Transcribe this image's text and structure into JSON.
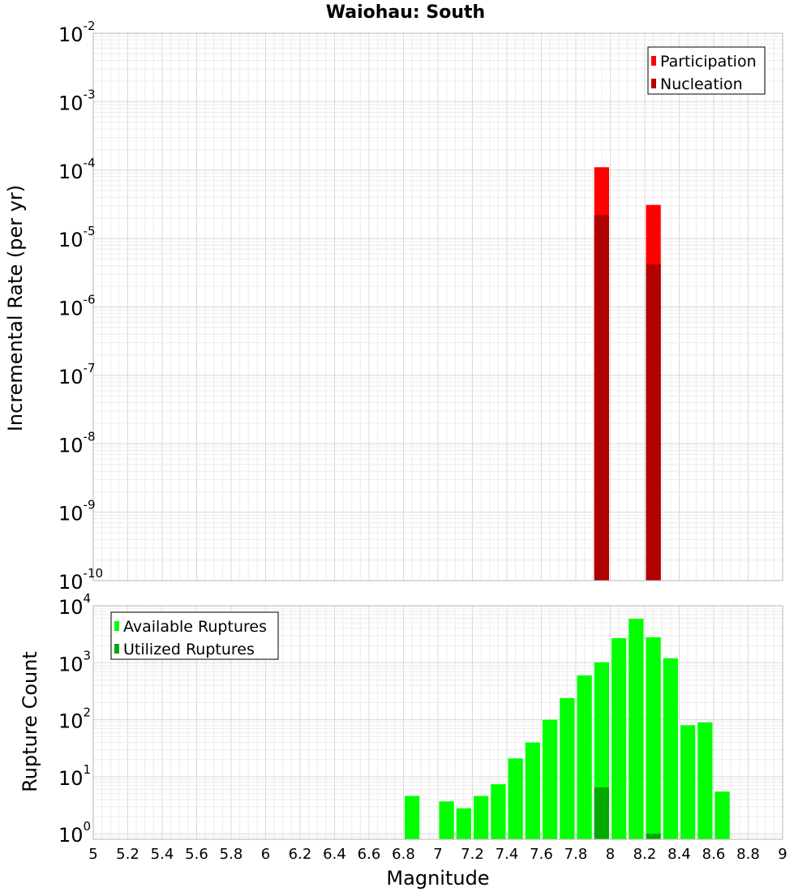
{
  "chart_data": [
    {
      "type": "bar",
      "title": "Waiohau: South",
      "xlabel": "",
      "ylabel": "Incremental Rate (per yr)",
      "xlim": [
        5,
        9
      ],
      "ylim": [
        1e-10,
        0.01
      ],
      "yscale": "log",
      "grid": true,
      "legend_position": "top-right",
      "bin_width": 0.1,
      "series": [
        {
          "name": "Participation",
          "color": "#ff0000",
          "x": [
            7.95,
            8.25
          ],
          "values": [
            0.00011,
            3.1e-05
          ]
        },
        {
          "name": "Nucleation",
          "color": "#b00000",
          "x": [
            7.95,
            8.25
          ],
          "values": [
            2.2e-05,
            4.2e-06
          ]
        }
      ]
    },
    {
      "type": "bar",
      "title": "",
      "xlabel": "Magnitude",
      "ylabel": "Rupture Count",
      "xlim": [
        5,
        9
      ],
      "ylim": [
        0.8,
        10000
      ],
      "yscale": "log",
      "grid": true,
      "legend_position": "top-left",
      "bin_width": 0.1,
      "xticks": [
        "5",
        "5.2",
        "5.4",
        "5.6",
        "5.8",
        "6",
        "6.2",
        "6.4",
        "6.6",
        "6.8",
        "7",
        "7.2",
        "7.4",
        "7.6",
        "7.8",
        "8",
        "8.2",
        "8.4",
        "8.6",
        "8.8",
        "9"
      ],
      "series": [
        {
          "name": "Available Ruptures",
          "color": "#00ff00",
          "x": [
            6.85,
            7.05,
            7.15,
            7.25,
            7.35,
            7.45,
            7.55,
            7.65,
            7.75,
            7.85,
            7.95,
            8.05,
            8.15,
            8.25,
            8.35,
            8.45,
            8.55,
            8.65
          ],
          "values": [
            4.6,
            3.7,
            2.8,
            4.6,
            7.4,
            21,
            40,
            100,
            240,
            600,
            1020,
            2700,
            5900,
            2800,
            1200,
            80,
            90,
            5.5
          ]
        },
        {
          "name": "Utilized Ruptures",
          "color": "#00a800",
          "x": [
            7.95,
            8.25
          ],
          "values": [
            6.5,
            1
          ]
        }
      ]
    }
  ],
  "top_y_ticks": [
    {
      "base": "10",
      "exp": "-10",
      "value": 1e-10
    },
    {
      "base": "10",
      "exp": "-9",
      "value": 1e-09
    },
    {
      "base": "10",
      "exp": "-8",
      "value": 1e-08
    },
    {
      "base": "10",
      "exp": "-7",
      "value": 1e-07
    },
    {
      "base": "10",
      "exp": "-6",
      "value": 1e-06
    },
    {
      "base": "10",
      "exp": "-5",
      "value": 1e-05
    },
    {
      "base": "10",
      "exp": "-4",
      "value": 0.0001
    },
    {
      "base": "10",
      "exp": "-3",
      "value": 0.001
    },
    {
      "base": "10",
      "exp": "-2",
      "value": 0.01
    }
  ],
  "bottom_y_ticks": [
    {
      "base": "10",
      "exp": "0",
      "value": 1
    },
    {
      "base": "10",
      "exp": "1",
      "value": 10
    },
    {
      "base": "10",
      "exp": "2",
      "value": 100
    },
    {
      "base": "10",
      "exp": "3",
      "value": 1000
    },
    {
      "base": "10",
      "exp": "4",
      "value": 10000
    }
  ]
}
